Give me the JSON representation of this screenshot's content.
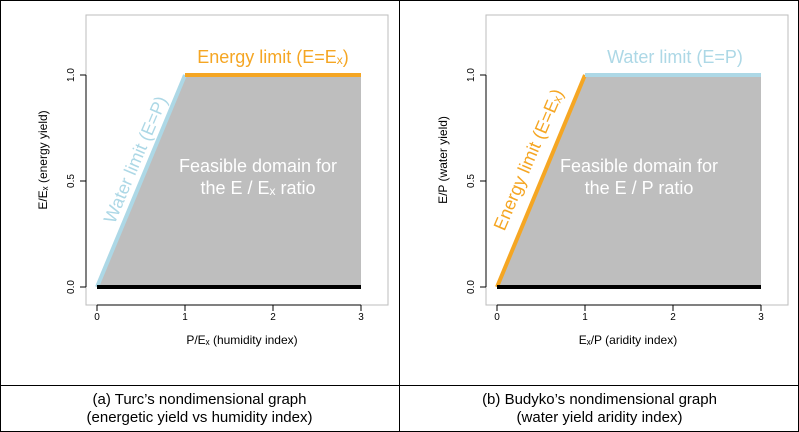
{
  "chart_data": [
    {
      "type": "area",
      "xlabel": "P/Eₓ (humidity index)",
      "ylabel": "E/Eₓ (energy yield)",
      "xlim": [
        0,
        3
      ],
      "ylim": [
        0,
        1
      ],
      "xticks": [
        "0",
        "1",
        "2",
        "3"
      ],
      "yticks": [
        "0.0",
        "0.5",
        "1.0"
      ],
      "region": {
        "x": [
          0,
          1,
          3,
          3,
          0
        ],
        "y": [
          0,
          1,
          1,
          0,
          0
        ],
        "color": "#bebebe"
      },
      "lines": [
        {
          "name": "Water limit (E=P)",
          "x": [
            0,
            1
          ],
          "y": [
            0,
            1
          ],
          "color": "#add8e6"
        },
        {
          "name": "Energy limit (E=Eₓ)",
          "x": [
            1,
            3
          ],
          "y": [
            1,
            1
          ],
          "color": "#f5a623"
        },
        {
          "name": "",
          "x": [
            0,
            3
          ],
          "y": [
            0,
            0
          ],
          "color": "#000000"
        }
      ],
      "annotations": {
        "water": "Water limit (E=P)",
        "energy": "Energy limit (E=Eₓ)",
        "feasible_1": "Feasible domain for",
        "feasible_2": "the E / Eₓ ratio"
      },
      "caption_1": "(a) Turc’s nondimensional graph",
      "caption_2": "(energetic yield vs humidity index)"
    },
    {
      "type": "area",
      "xlabel": "Eₓ/P (aridity index)",
      "ylabel": "E/P (water yield)",
      "xlim": [
        0,
        3
      ],
      "ylim": [
        0,
        1
      ],
      "xticks": [
        "0",
        "1",
        "2",
        "3"
      ],
      "yticks": [
        "0.0",
        "0.5",
        "1.0"
      ],
      "region": {
        "x": [
          0,
          1,
          3,
          3,
          0
        ],
        "y": [
          0,
          1,
          1,
          0,
          0
        ],
        "color": "#bebebe"
      },
      "lines": [
        {
          "name": "Energy limit (E=Eₓ)",
          "x": [
            0,
            1
          ],
          "y": [
            0,
            1
          ],
          "color": "#f5a623"
        },
        {
          "name": "Water limit (E=P)",
          "x": [
            1,
            3
          ],
          "y": [
            1,
            1
          ],
          "color": "#add8e6"
        },
        {
          "name": "",
          "x": [
            0,
            3
          ],
          "y": [
            0,
            0
          ],
          "color": "#000000"
        }
      ],
      "annotations": {
        "diag": "Energy limit (E=Eₓ)",
        "top": "Water limit (E=P)",
        "feasible_1": "Feasible domain for",
        "feasible_2": "the E / P ratio"
      },
      "caption_1": "(b) Budyko’s nondimensional graph",
      "caption_2": "(water yield aridity index)"
    }
  ]
}
